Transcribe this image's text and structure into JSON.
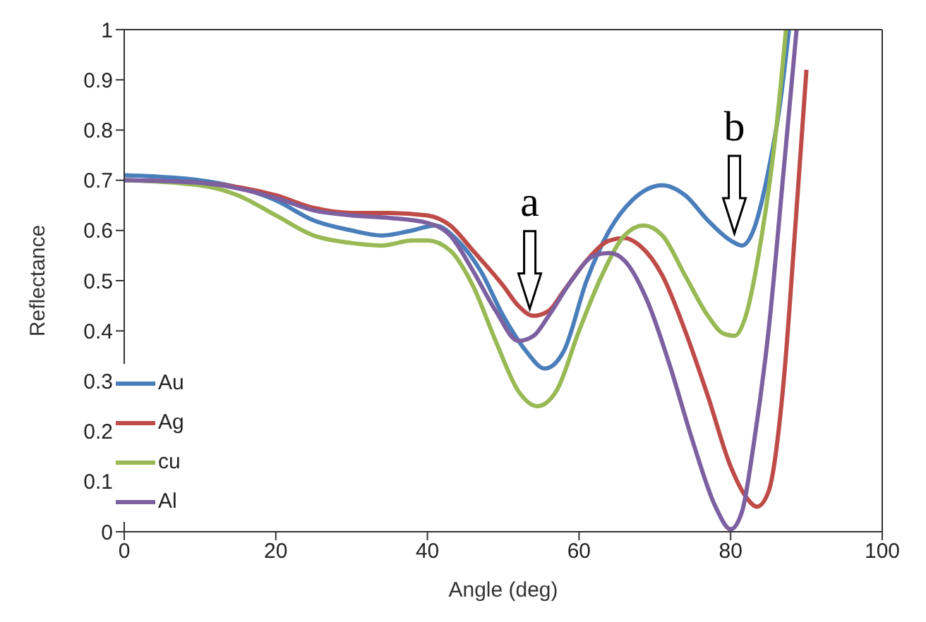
{
  "chart_data": {
    "type": "line",
    "xlabel": "Angle (deg)",
    "ylabel": "Reflectance",
    "xlim": [
      0,
      100
    ],
    "xticks": [
      0,
      20,
      40,
      60,
      80,
      100
    ],
    "ylim": [
      0,
      1
    ],
    "yticks": [
      0,
      0.1,
      0.2,
      0.3,
      0.4,
      0.5,
      0.6,
      0.7,
      0.8,
      0.9,
      1
    ],
    "legend": "bottom left",
    "marker": "none",
    "line_style": "solid",
    "annotations": [
      {
        "text": "a",
        "x": 53.5,
        "y": 0.43
      },
      {
        "text": "b",
        "x": 80.5,
        "y": 0.58
      }
    ],
    "series": [
      {
        "name": "Au",
        "color": "#4a7ebb",
        "x": [
          0,
          10,
          20,
          25,
          30,
          34,
          38,
          41,
          44,
          47,
          50,
          53,
          55.5,
          58,
          61,
          64,
          67,
          71,
          74,
          77,
          80,
          81.5,
          83,
          85,
          86.5,
          87.7
        ],
        "values": [
          0.71,
          0.7,
          0.66,
          0.62,
          0.6,
          0.59,
          0.6,
          0.61,
          0.58,
          0.52,
          0.43,
          0.36,
          0.325,
          0.36,
          0.5,
          0.6,
          0.66,
          0.69,
          0.67,
          0.62,
          0.58,
          0.57,
          0.6,
          0.72,
          0.85,
          1.0
        ]
      },
      {
        "name": "Ag",
        "color": "#be4b48",
        "x": [
          0,
          10,
          20,
          25,
          30,
          35,
          40,
          43,
          46,
          50,
          52,
          54,
          56,
          58,
          61,
          64,
          66,
          68,
          71,
          74,
          77,
          80,
          82,
          83.5,
          85,
          87,
          88.5,
          90
        ],
        "values": [
          0.7,
          0.695,
          0.67,
          0.645,
          0.635,
          0.635,
          0.63,
          0.61,
          0.56,
          0.49,
          0.45,
          0.43,
          0.44,
          0.48,
          0.54,
          0.58,
          0.585,
          0.57,
          0.51,
          0.4,
          0.27,
          0.13,
          0.07,
          0.05,
          0.08,
          0.3,
          0.6,
          0.92
        ]
      },
      {
        "name": "cu",
        "color": "#98b954",
        "x": [
          0,
          10,
          15,
          20,
          25,
          30,
          34,
          38,
          40,
          43,
          46,
          49,
          52,
          54.5,
          57,
          60,
          63,
          66,
          68.5,
          71,
          74,
          77,
          79,
          80.5,
          82,
          84,
          86,
          87.3
        ],
        "values": [
          0.7,
          0.69,
          0.67,
          0.63,
          0.59,
          0.575,
          0.57,
          0.58,
          0.58,
          0.56,
          0.49,
          0.38,
          0.28,
          0.25,
          0.28,
          0.4,
          0.51,
          0.59,
          0.61,
          0.59,
          0.51,
          0.43,
          0.395,
          0.39,
          0.43,
          0.58,
          0.8,
          1.0
        ]
      },
      {
        "name": "Al",
        "color": "#7d60a0",
        "x": [
          0,
          10,
          20,
          25,
          30,
          35,
          40,
          43,
          46,
          49,
          52,
          54,
          56,
          59,
          62,
          64,
          66,
          69,
          72,
          75,
          78,
          80,
          81.5,
          83,
          85,
          87,
          88.7
        ],
        "values": [
          0.7,
          0.695,
          0.665,
          0.64,
          0.63,
          0.625,
          0.615,
          0.59,
          0.52,
          0.44,
          0.38,
          0.39,
          0.43,
          0.5,
          0.55,
          0.555,
          0.54,
          0.46,
          0.33,
          0.18,
          0.05,
          0.005,
          0.04,
          0.17,
          0.4,
          0.72,
          1.0
        ]
      }
    ]
  }
}
